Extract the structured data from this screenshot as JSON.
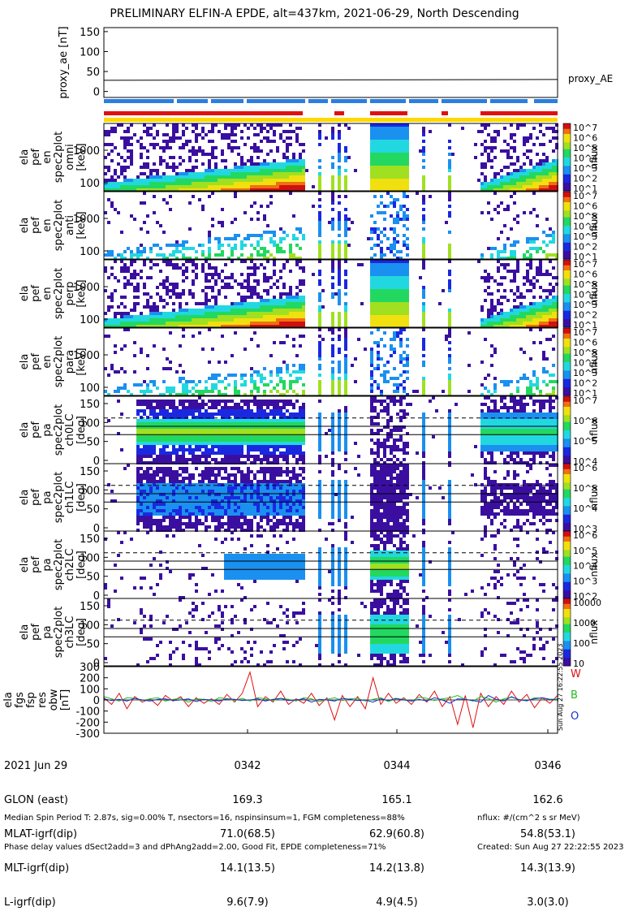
{
  "title": "PRELIMINARY ELFIN-A EPDE, alt=437km, 2021-06-29, North Descending",
  "colors": {
    "red": "#dd1111",
    "green": "#22bb22",
    "blue": "#1133cc",
    "bar_blue": "#2a7fe0",
    "bar_red": "#e01010",
    "bar_yellow": "#ffd800"
  },
  "chart_data": [
    {
      "type": "line",
      "panel": "proxy_ae",
      "ylabel": "proxy_ae [nT]",
      "yticks": [
        0,
        50,
        100,
        150
      ],
      "ylim": [
        -15,
        160
      ],
      "series": [
        {
          "name": "proxy_AE",
          "x": [
            0,
            1
          ],
          "values": [
            28,
            30
          ]
        }
      ]
    },
    {
      "type": "heatmap",
      "panel": "ela pef en spec2plot",
      "ylabel": [
        "ela",
        "pef",
        "en",
        "spec2plot",
        "omni",
        "[keV]"
      ],
      "yticks": [
        "100",
        "1000"
      ],
      "colorbar_label": "nflux",
      "colorbar_ticks": [
        "10^1",
        "10^2",
        "10^3",
        "10^4",
        "10^5",
        "10^6",
        "10^7"
      ]
    },
    {
      "type": "heatmap",
      "panel": "ela pef en spec2plot anti",
      "ylabel": [
        "ela",
        "pef",
        "en",
        "spec2plot",
        "anti",
        "[keV]"
      ],
      "yticks": [
        "100",
        "1000"
      ],
      "colorbar_label": "nflux",
      "colorbar_ticks": [
        "10^1",
        "10^2",
        "10^3",
        "10^4",
        "10^5",
        "10^6",
        "10^7"
      ]
    },
    {
      "type": "heatmap",
      "panel": "ela pef en spec2plot perp",
      "ylabel": [
        "ela",
        "pef",
        "en",
        "spec2plot",
        "perp",
        "[keV]"
      ],
      "yticks": [
        "100",
        "1000"
      ],
      "colorbar_label": "nflux",
      "colorbar_ticks": [
        "10^1",
        "10^2",
        "10^3",
        "10^4",
        "10^5",
        "10^6",
        "10^7"
      ]
    },
    {
      "type": "heatmap",
      "panel": "ela pef en spec2plot para",
      "ylabel": [
        "ela",
        "pef",
        "en",
        "spec2plot",
        "para",
        "[keV]"
      ],
      "yticks": [
        "100",
        "1000"
      ],
      "colorbar_label": "nflux",
      "colorbar_ticks": [
        "10^1",
        "10^2",
        "10^3",
        "10^4",
        "10^5",
        "10^6",
        "10^7"
      ]
    },
    {
      "type": "heatmap",
      "panel": "ela pef pa spec2plot ch0LC",
      "ylabel": [
        "ela",
        "pef",
        "pa",
        "spec2plot",
        "ch0LC",
        "[deg]"
      ],
      "yticks": [
        0,
        50,
        100,
        150
      ],
      "colorbar_label": "nflux",
      "colorbar_ticks": [
        "10^4",
        "10^5",
        "10^6",
        "10^7"
      ]
    },
    {
      "type": "heatmap",
      "panel": "ela pef pa spec2plot ch1LC",
      "ylabel": [
        "ela",
        "pef",
        "pa",
        "spec2plot",
        "ch1LC",
        "[deg]"
      ],
      "yticks": [
        0,
        50,
        100,
        150
      ],
      "colorbar_label": "nflux",
      "colorbar_ticks": [
        "10^3",
        "10^4",
        "10^5",
        "10^6"
      ]
    },
    {
      "type": "heatmap",
      "panel": "ela pef pa spec2plot ch2LC",
      "ylabel": [
        "ela",
        "pef",
        "pa",
        "spec2plot",
        "ch2LC",
        "[deg]"
      ],
      "yticks": [
        0,
        50,
        100,
        150
      ],
      "colorbar_label": "nflux",
      "colorbar_ticks": [
        "10^2",
        "10^3",
        "10^4",
        "10^5",
        "10^6"
      ]
    },
    {
      "type": "heatmap",
      "panel": "ela pef pa spec2plot ch3LC",
      "ylabel": [
        "ela",
        "pef",
        "pa",
        "spec2plot",
        "ch3LC",
        "[deg]"
      ],
      "yticks": [
        0,
        50,
        100,
        150
      ],
      "colorbar_label": "nflux",
      "colorbar_ticks": [
        "10",
        "100",
        "1000",
        "10000"
      ]
    },
    {
      "type": "line",
      "panel": "ela fgs fsp res obw",
      "ylabel": [
        "ela",
        "fgs",
        "fsp",
        "res",
        "obw",
        "[nT]"
      ],
      "yticks": [
        -300,
        -200,
        -100,
        0,
        100,
        200,
        300
      ],
      "ylim": [
        -300,
        300
      ],
      "series": [
        {
          "name": "W",
          "color": "#dd1111",
          "values": [
            20,
            -40,
            60,
            -80,
            30,
            -20,
            10,
            -50,
            40,
            -10,
            30,
            -60,
            20,
            -30,
            10,
            -40,
            50,
            -20,
            60,
            250,
            -60,
            30,
            -20,
            80,
            -40,
            10,
            -30,
            60,
            -50,
            20,
            -180,
            40,
            -60,
            30,
            -80,
            200,
            -40,
            60,
            -30,
            20,
            -40,
            50,
            -20,
            80,
            -60,
            30,
            -220,
            40,
            -250,
            60,
            -60,
            30,
            -40,
            80,
            -20,
            50,
            -70,
            20,
            -30,
            40
          ]
        },
        {
          "name": "B",
          "color": "#22bb22",
          "values": [
            30,
            10,
            -10,
            20,
            15,
            -5,
            10,
            20,
            -10,
            5,
            15,
            -20,
            10,
            5,
            -15,
            20,
            10,
            -5,
            15,
            -10,
            20,
            10,
            -5,
            15,
            5,
            -10,
            20,
            10,
            -15,
            5,
            20,
            -5,
            10,
            15,
            -10,
            5,
            20,
            -15,
            10,
            5,
            -10,
            25,
            15,
            -5,
            10,
            20,
            40,
            5,
            -10,
            30,
            15,
            -20,
            10,
            25,
            5,
            -10,
            20,
            15,
            5,
            10
          ]
        },
        {
          "name": "O",
          "color": "#1133cc",
          "values": [
            10,
            -5,
            5,
            -10,
            15,
            0,
            -10,
            5,
            10,
            -5,
            0,
            10,
            -15,
            5,
            0,
            -10,
            10,
            5,
            -5,
            0,
            10,
            -10,
            5,
            15,
            -5,
            0,
            10,
            -20,
            5,
            0,
            -10,
            15,
            5,
            -5,
            0,
            -20,
            10,
            -5,
            15,
            0,
            -10,
            5,
            -10,
            20,
            0,
            -30,
            10,
            5,
            -5,
            -20,
            40,
            5,
            -10,
            30,
            0,
            -5,
            10,
            20,
            5,
            0
          ]
        }
      ],
      "legend": [
        "W",
        "B",
        "O"
      ]
    }
  ],
  "xaxis": {
    "rows": [
      {
        "label": "2021 Jun 29",
        "values": [
          "0342",
          "0344",
          "0346"
        ]
      },
      {
        "label": "GLON (east)",
        "values": [
          "169.3",
          "165.1",
          "162.6"
        ]
      },
      {
        "label": "MLAT-igrf(dip)",
        "values": [
          "71.0(68.5)",
          "62.9(60.8)",
          "54.8(53.1)"
        ]
      },
      {
        "label": "MLT-igrf(dip)",
        "values": [
          "14.1(13.5)",
          "14.2(13.8)",
          "14.3(13.9)"
        ]
      },
      {
        "label": "L-igrf(dip)",
        "values": [
          "9.6(7.9)",
          "4.9(4.5)",
          "3.0(3.0)"
        ]
      }
    ]
  },
  "proxy_label": "proxy_AE",
  "footer": {
    "line1": "Median Spin Period T: 2.87s, sig=0.00% T, nsectors=16, nspinsinsum=1, FGM completeness=88%",
    "line2": "Phase delay values dSect2add=3 and dPhAng2add=2.00, Good Fit, EPDE completeness=71%",
    "units": "nflux: #/(cm^2 s sr MeV)",
    "created": "Created: Sun Aug 27 22:22:55 2023",
    "side_stamp": "Sun Aug 27 16:22:55 2023"
  }
}
